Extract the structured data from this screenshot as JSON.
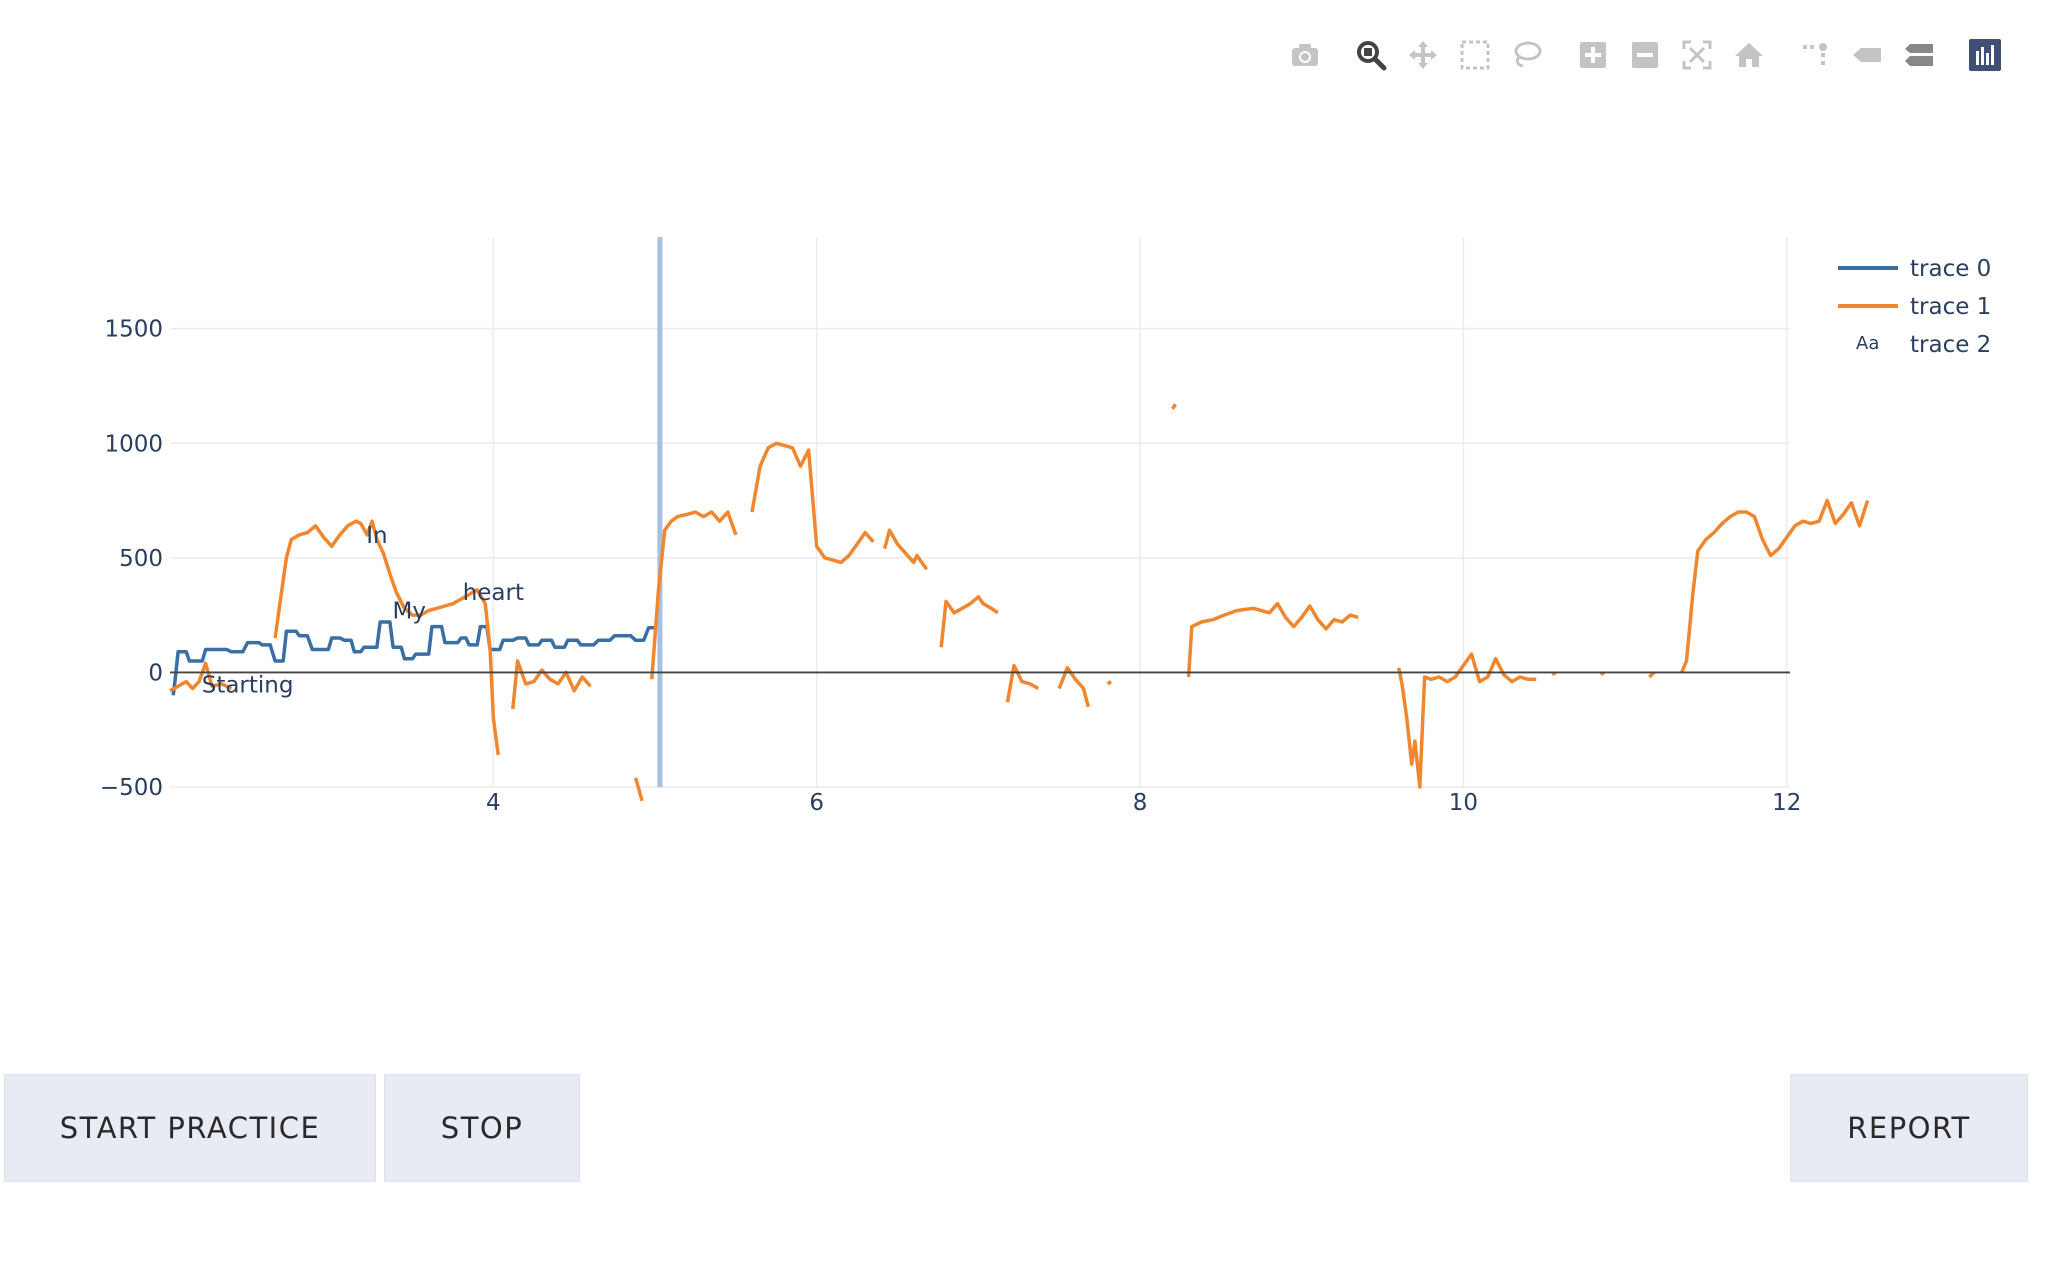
{
  "modebar": {
    "buttons": [
      "camera-icon",
      "zoom-icon",
      "pan-icon",
      "box-select-icon",
      "lasso-icon",
      "zoom-in-icon",
      "zoom-out-icon",
      "autoscale-icon",
      "reset-axes-icon",
      "spike-lines-icon",
      "hover-closest-icon",
      "hover-compare-icon",
      "plotly-logo-icon"
    ]
  },
  "buttons": {
    "start_label": "START PRACTICE",
    "stop_label": "STOP",
    "report_label": "REPORT"
  },
  "colors": {
    "trace0": "#3a6fa5",
    "trace1": "#f0872f",
    "cursor": "#a8c0e0",
    "grid": "#ececec",
    "zeroline": "#444444"
  },
  "chart_data": {
    "type": "line",
    "xlim": [
      2.0,
      12.02
    ],
    "ylim": [
      -500,
      1900
    ],
    "x_ticks": [
      4,
      6,
      8,
      10,
      12
    ],
    "y_ticks": [
      -500,
      0,
      500,
      1000,
      1500
    ],
    "x_tick_labels": [
      "4",
      "6",
      "8",
      "10",
      "12"
    ],
    "y_tick_labels": [
      "−500",
      "0",
      "500",
      "1000",
      "1500"
    ],
    "grid": true,
    "legend_position": "top-right",
    "cursor_x": 5.03,
    "series": [
      {
        "name": "trace 0",
        "type": "line",
        "segments": [
          [
            [
              2.02,
              -100
            ],
            [
              2.03,
              -40
            ],
            [
              2.05,
              90
            ],
            [
              2.1,
              90
            ],
            [
              2.12,
              50
            ],
            [
              2.2,
              50
            ],
            [
              2.22,
              100
            ],
            [
              2.35,
              100
            ],
            [
              2.38,
              90
            ],
            [
              2.45,
              90
            ],
            [
              2.48,
              130
            ],
            [
              2.55,
              130
            ],
            [
              2.57,
              120
            ],
            [
              2.62,
              120
            ],
            [
              2.65,
              50
            ],
            [
              2.7,
              50
            ],
            [
              2.72,
              180
            ],
            [
              2.78,
              180
            ],
            [
              2.8,
              160
            ],
            [
              2.85,
              160
            ],
            [
              2.88,
              100
            ],
            [
              2.98,
              100
            ],
            [
              3.0,
              150
            ],
            [
              3.05,
              150
            ],
            [
              3.08,
              140
            ],
            [
              3.12,
              140
            ],
            [
              3.14,
              90
            ],
            [
              3.18,
              90
            ],
            [
              3.2,
              110
            ],
            [
              3.28,
              110
            ],
            [
              3.3,
              220
            ],
            [
              3.36,
              220
            ],
            [
              3.38,
              110
            ],
            [
              3.43,
              110
            ],
            [
              3.45,
              60
            ],
            [
              3.5,
              60
            ],
            [
              3.52,
              80
            ],
            [
              3.6,
              80
            ],
            [
              3.62,
              200
            ],
            [
              3.68,
              200
            ],
            [
              3.7,
              130
            ],
            [
              3.78,
              130
            ],
            [
              3.8,
              150
            ],
            [
              3.83,
              150
            ],
            [
              3.85,
              120
            ],
            [
              3.9,
              120
            ],
            [
              3.92,
              200
            ],
            [
              3.96,
              200
            ],
            [
              3.98,
              100
            ],
            [
              4.04,
              100
            ],
            [
              4.06,
              140
            ],
            [
              4.12,
              140
            ],
            [
              4.15,
              150
            ],
            [
              4.2,
              150
            ],
            [
              4.22,
              120
            ],
            [
              4.28,
              120
            ],
            [
              4.3,
              140
            ],
            [
              4.36,
              140
            ],
            [
              4.38,
              110
            ],
            [
              4.44,
              110
            ],
            [
              4.46,
              140
            ],
            [
              4.52,
              140
            ],
            [
              4.54,
              120
            ],
            [
              4.62,
              120
            ],
            [
              4.65,
              140
            ],
            [
              4.72,
              140
            ],
            [
              4.75,
              160
            ],
            [
              4.85,
              160
            ],
            [
              4.88,
              140
            ],
            [
              4.93,
              140
            ],
            [
              4.96,
              195
            ],
            [
              5.0,
              195
            ]
          ]
        ]
      },
      {
        "name": "trace 1",
        "type": "line",
        "segments": [
          [
            [
              2.0,
              -80
            ],
            [
              2.05,
              -60
            ],
            [
              2.1,
              -40
            ],
            [
              2.14,
              -70
            ],
            [
              2.18,
              -40
            ],
            [
              2.22,
              40
            ],
            [
              2.26,
              -60
            ],
            [
              2.32,
              -50
            ],
            [
              2.38,
              -70
            ]
          ],
          [
            [
              2.65,
              150
            ],
            [
              2.68,
              300
            ],
            [
              2.72,
              500
            ],
            [
              2.75,
              580
            ],
            [
              2.8,
              600
            ],
            [
              2.85,
              610
            ],
            [
              2.9,
              640
            ],
            [
              2.95,
              590
            ],
            [
              3.0,
              550
            ],
            [
              3.05,
              600
            ],
            [
              3.1,
              640
            ],
            [
              3.15,
              660
            ],
            [
              3.18,
              650
            ],
            [
              3.22,
              600
            ],
            [
              3.25,
              660
            ],
            [
              3.28,
              580
            ],
            [
              3.32,
              520
            ],
            [
              3.36,
              430
            ],
            [
              3.4,
              350
            ],
            [
              3.45,
              280
            ],
            [
              3.5,
              250
            ],
            [
              3.55,
              250
            ],
            [
              3.6,
              270
            ],
            [
              3.65,
              280
            ],
            [
              3.7,
              290
            ],
            [
              3.75,
              300
            ],
            [
              3.8,
              320
            ],
            [
              3.85,
              340
            ],
            [
              3.9,
              360
            ],
            [
              3.95,
              300
            ],
            [
              3.98,
              100
            ],
            [
              4.0,
              -200
            ],
            [
              4.03,
              -360
            ]
          ],
          [
            [
              4.12,
              -160
            ],
            [
              4.15,
              50
            ],
            [
              4.2,
              -50
            ],
            [
              4.25,
              -40
            ],
            [
              4.3,
              10
            ],
            [
              4.35,
              -30
            ],
            [
              4.4,
              -50
            ],
            [
              4.45,
              0
            ],
            [
              4.5,
              -80
            ],
            [
              4.55,
              -20
            ],
            [
              4.6,
              -60
            ]
          ],
          [
            [
              4.88,
              -460
            ],
            [
              4.92,
              -560
            ]
          ],
          [
            [
              4.98,
              -30
            ],
            [
              5.02,
              350
            ],
            [
              5.06,
              620
            ],
            [
              5.1,
              660
            ],
            [
              5.14,
              680
            ],
            [
              5.2,
              690
            ],
            [
              5.25,
              700
            ],
            [
              5.3,
              680
            ],
            [
              5.35,
              700
            ],
            [
              5.4,
              660
            ],
            [
              5.45,
              700
            ],
            [
              5.5,
              600
            ]
          ],
          [
            [
              5.6,
              700
            ],
            [
              5.65,
              900
            ],
            [
              5.7,
              980
            ],
            [
              5.75,
              1000
            ],
            [
              5.8,
              990
            ],
            [
              5.85,
              980
            ],
            [
              5.9,
              900
            ],
            [
              5.95,
              970
            ],
            [
              6.0,
              550
            ],
            [
              6.05,
              500
            ],
            [
              6.1,
              490
            ],
            [
              6.15,
              480
            ],
            [
              6.2,
              510
            ],
            [
              6.25,
              560
            ],
            [
              6.3,
              610
            ],
            [
              6.35,
              570
            ]
          ],
          [
            [
              6.42,
              540
            ],
            [
              6.45,
              620
            ],
            [
              6.5,
              560
            ],
            [
              6.55,
              520
            ],
            [
              6.6,
              480
            ],
            [
              6.62,
              510
            ],
            [
              6.68,
              450
            ]
          ],
          [
            [
              6.77,
              110
            ],
            [
              6.8,
              310
            ],
            [
              6.85,
              260
            ],
            [
              6.9,
              280
            ],
            [
              6.95,
              300
            ],
            [
              7.0,
              330
            ],
            [
              7.03,
              300
            ],
            [
              7.08,
              280
            ],
            [
              7.12,
              260
            ]
          ],
          [
            [
              7.18,
              -130
            ],
            [
              7.22,
              30
            ],
            [
              7.27,
              -40
            ],
            [
              7.32,
              -50
            ],
            [
              7.37,
              -70
            ]
          ],
          [
            [
              7.5,
              -70
            ],
            [
              7.55,
              20
            ],
            [
              7.6,
              -30
            ],
            [
              7.65,
              -70
            ],
            [
              7.68,
              -150
            ]
          ],
          [
            [
              7.8,
              -50
            ],
            [
              7.82,
              -40
            ]
          ],
          [
            [
              8.2,
              1150
            ],
            [
              8.22,
              1170
            ]
          ],
          [
            [
              8.3,
              -20
            ],
            [
              8.32,
              200
            ],
            [
              8.38,
              220
            ],
            [
              8.45,
              230
            ],
            [
              8.52,
              250
            ],
            [
              8.6,
              270
            ],
            [
              8.7,
              280
            ],
            [
              8.8,
              260
            ],
            [
              8.85,
              300
            ],
            [
              8.9,
              240
            ],
            [
              8.95,
              200
            ],
            [
              9.0,
              240
            ],
            [
              9.05,
              290
            ],
            [
              9.1,
              230
            ],
            [
              9.15,
              190
            ],
            [
              9.2,
              230
            ],
            [
              9.25,
              220
            ],
            [
              9.3,
              250
            ],
            [
              9.35,
              240
            ]
          ],
          [
            [
              9.6,
              20
            ],
            [
              9.62,
              -50
            ],
            [
              9.65,
              -200
            ],
            [
              9.68,
              -400
            ],
            [
              9.7,
              -300
            ],
            [
              9.73,
              -500
            ],
            [
              9.76,
              -20
            ],
            [
              9.8,
              -30
            ],
            [
              9.85,
              -20
            ],
            [
              9.9,
              -40
            ],
            [
              9.95,
              -20
            ],
            [
              10.0,
              30
            ],
            [
              10.05,
              80
            ],
            [
              10.1,
              -40
            ],
            [
              10.15,
              -20
            ],
            [
              10.2,
              60
            ],
            [
              10.25,
              -10
            ],
            [
              10.3,
              -40
            ],
            [
              10.35,
              -20
            ],
            [
              10.4,
              -30
            ],
            [
              10.45,
              -30
            ]
          ],
          [
            [
              10.55,
              -10
            ],
            [
              10.57,
              0
            ]
          ],
          [
            [
              10.85,
              -10
            ],
            [
              10.87,
              0
            ]
          ],
          [
            [
              11.15,
              -20
            ],
            [
              11.18,
              0
            ]
          ],
          [
            [
              11.35,
              0
            ],
            [
              11.38,
              50
            ],
            [
              11.42,
              350
            ],
            [
              11.45,
              530
            ],
            [
              11.5,
              580
            ],
            [
              11.55,
              610
            ],
            [
              11.6,
              650
            ],
            [
              11.65,
              680
            ],
            [
              11.7,
              700
            ],
            [
              11.75,
              700
            ],
            [
              11.8,
              680
            ],
            [
              11.85,
              580
            ],
            [
              11.9,
              510
            ],
            [
              11.95,
              540
            ],
            [
              12.0,
              590
            ],
            [
              12.05,
              640
            ],
            [
              12.1,
              660
            ],
            [
              12.15,
              650
            ],
            [
              12.2,
              660
            ],
            [
              12.25,
              750
            ],
            [
              12.3,
              650
            ],
            [
              12.35,
              690
            ],
            [
              12.4,
              740
            ],
            [
              12.45,
              640
            ],
            [
              12.5,
              750
            ]
          ]
        ]
      },
      {
        "name": "trace 2",
        "type": "text",
        "points": [
          {
            "x": 2.48,
            "y": -52,
            "text": "Starting"
          },
          {
            "x": 3.28,
            "y": 600,
            "text": "In"
          },
          {
            "x": 3.48,
            "y": 270,
            "text": "My"
          },
          {
            "x": 4.0,
            "y": 350,
            "text": "heart"
          }
        ]
      }
    ]
  }
}
